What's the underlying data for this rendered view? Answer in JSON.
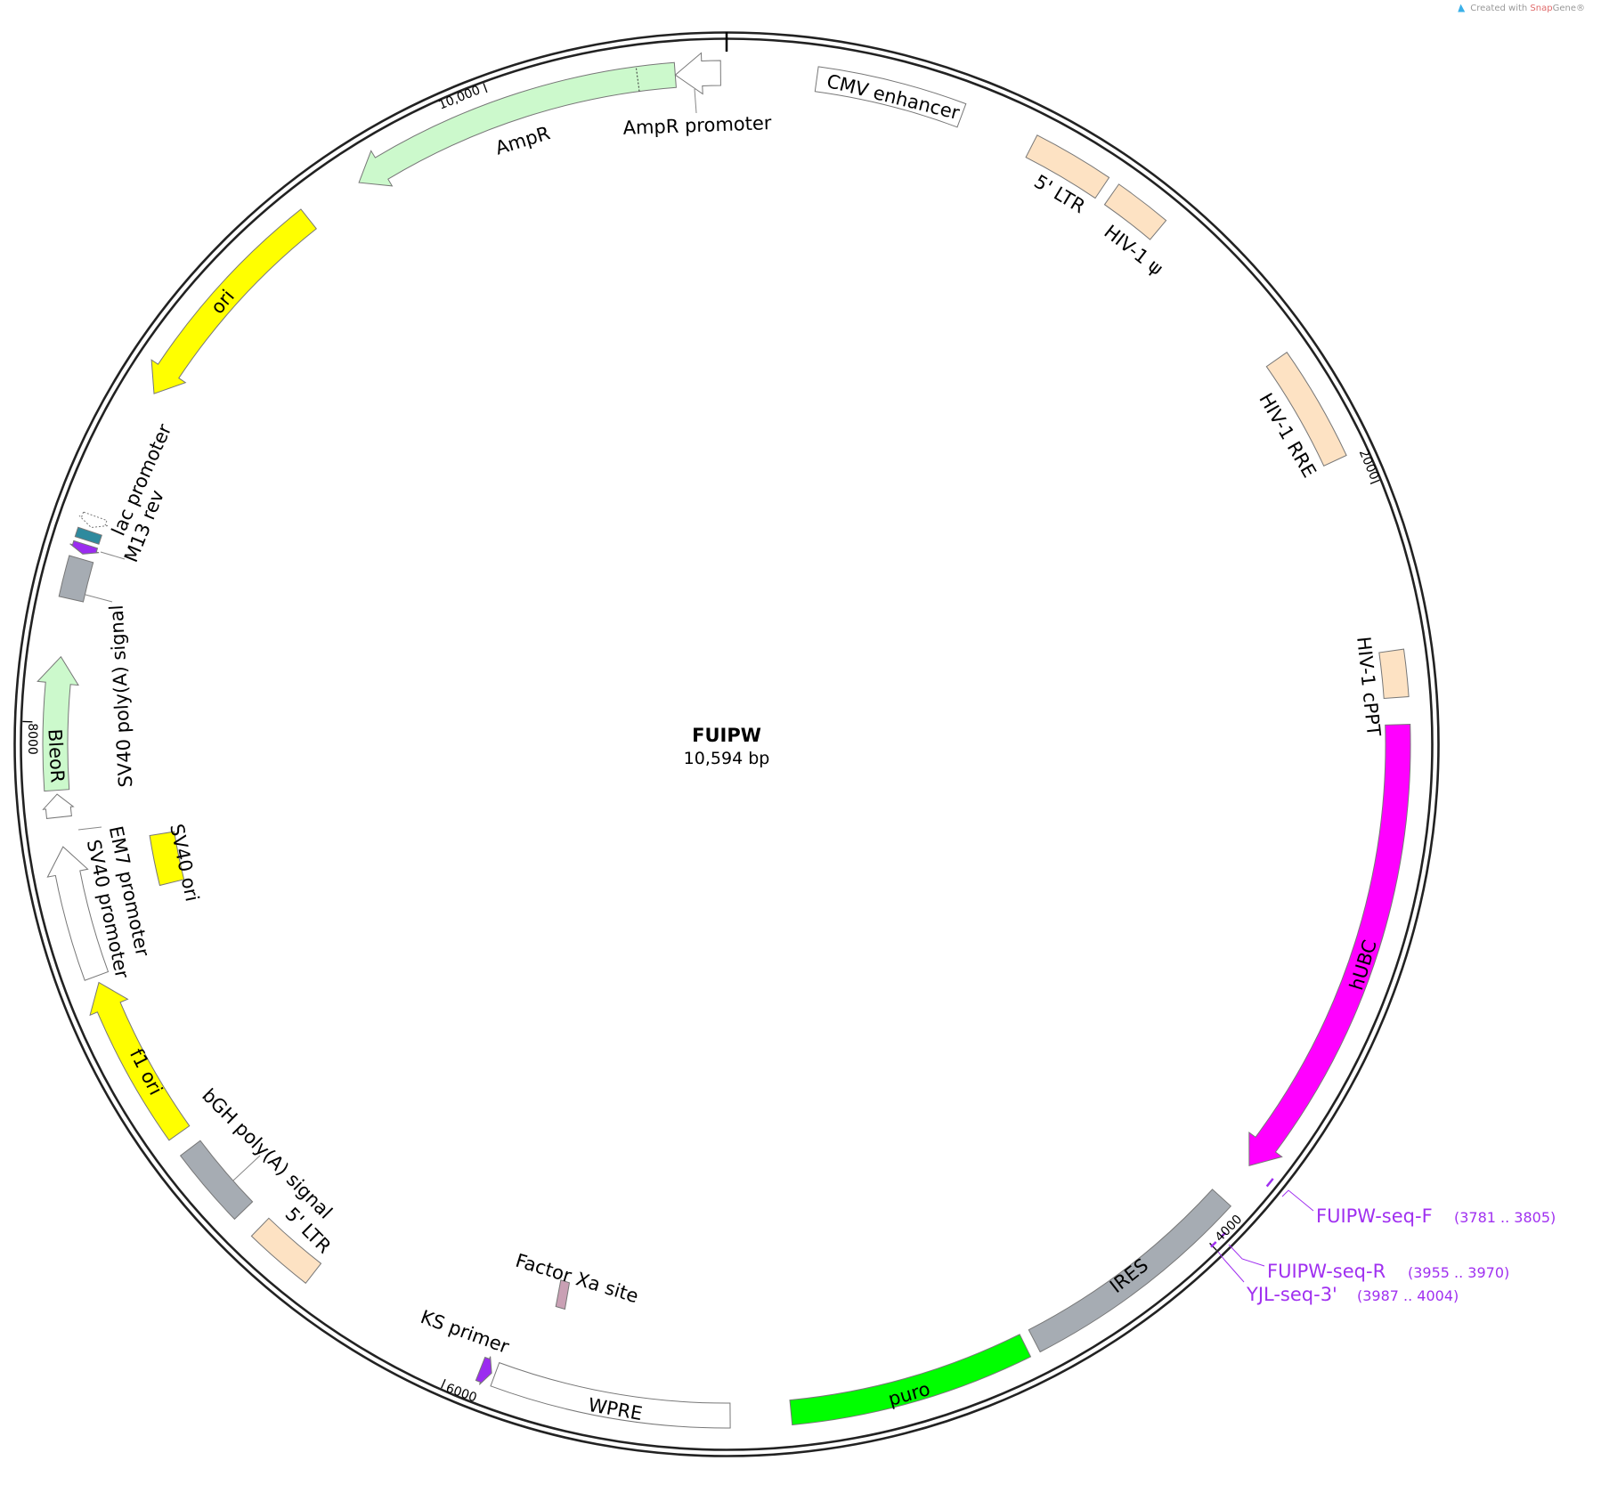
{
  "watermark": {
    "prefix": "Created with ",
    "brand": "Snap",
    "suffix": "Gene®"
  },
  "map": {
    "name": "FUIPW",
    "length_label": "10,594 bp",
    "length_bp": 10594
  },
  "ticks": [
    {
      "bp": 2000,
      "label": "2000"
    },
    {
      "bp": 4000,
      "label": "4000"
    },
    {
      "bp": 6000,
      "label": "6000"
    },
    {
      "bp": 8000,
      "label": "8000"
    },
    {
      "bp": 10000,
      "label": "10,000"
    }
  ],
  "features": [
    {
      "label": "CMV enhancer",
      "start": 227,
      "end": 603,
      "dir": "none",
      "color": "#ffffff",
      "track": "main"
    },
    {
      "label": "5' LTR",
      "start": 795,
      "end": 1001,
      "dir": "none",
      "color": "#fde2c3",
      "track": "main"
    },
    {
      "label": "HIV-1 ψ",
      "start": 1030,
      "end": 1177,
      "dir": "none",
      "color": "#fde2c3",
      "track": "main"
    },
    {
      "label": "HIV-1 RRE",
      "start": 1619,
      "end": 1913,
      "dir": "none",
      "color": "#fde2c3",
      "track": "main"
    },
    {
      "label": "HIV-1 cPPT",
      "start": 2413,
      "end": 2531,
      "dir": "none",
      "color": "#fde2c3",
      "track": "main"
    },
    {
      "label": "hUBC",
      "start": 2599,
      "end": 3793,
      "dir": "fwd",
      "color": "#ff00ff",
      "track": "main"
    },
    {
      "label": "IRES",
      "start": 3899,
      "end": 4494,
      "dir": "none",
      "color": "#a6acb3",
      "track": "main"
    },
    {
      "label": "puro",
      "start": 4520,
      "end": 5135,
      "dir": "none",
      "color": "#00ff00",
      "track": "main"
    },
    {
      "label": "WPRE",
      "start": 5288,
      "end": 5891,
      "dir": "none",
      "color": "#ffffff",
      "track": "main"
    },
    {
      "label": "KS primer",
      "start": 5900,
      "end": 5930,
      "dir": "rev",
      "color": "#9b2cf0",
      "track": "main"
    },
    {
      "label": "Factor Xa site",
      "start": 5770,
      "end": 5800,
      "dir": "none",
      "color": "#c9a0b4",
      "track": "inner-thin"
    },
    {
      "label": "5' LTR",
      "start": 6415,
      "end": 6592,
      "dir": "none",
      "color": "#fde2c3",
      "track": "main"
    },
    {
      "label": "bGH poly(A) signal",
      "start": 6651,
      "end": 6857,
      "dir": "none",
      "color": "#a6acb3",
      "track": "main"
    },
    {
      "label": "f1 ori",
      "start": 6904,
      "end": 7334,
      "dir": "fwd",
      "color": "#ffff00",
      "track": "main"
    },
    {
      "label": "SV40 promoter",
      "start": 7351,
      "end": 7687,
      "dir": "fwd",
      "color": "#ffffff",
      "track": "main"
    },
    {
      "label": "EM7 promoter",
      "start": 7762,
      "end": 7820,
      "dir": "fwd",
      "color": "#ffffff",
      "track": "main"
    },
    {
      "label": "BleoR",
      "start": 7830,
      "end": 8166,
      "dir": "fwd",
      "color": "#ccf9cc",
      "track": "main"
    },
    {
      "label": "SV40 ori",
      "start": 7534,
      "end": 7681,
      "dir": "none",
      "color": "#ffff00",
      "track": "inner"
    },
    {
      "label": "SV40 poly(A) signal",
      "start": 8313,
      "end": 8417,
      "dir": "none",
      "color": "#a6acb3",
      "track": "main"
    },
    {
      "label": "M13 rev",
      "start": 8430,
      "end": 8455,
      "dir": "rev",
      "color": "#9b2cf0",
      "track": "main"
    },
    {
      "label": "",
      "start": 8466,
      "end": 8490,
      "dir": "none",
      "color": "#2e8a9e",
      "track": "main"
    },
    {
      "label": "lac promoter",
      "start": 8500,
      "end": 8530,
      "dir": "rev",
      "color": "#ffffff",
      "track": "main"
    },
    {
      "label": "ori",
      "start": 8872,
      "end": 9461,
      "dir": "rev",
      "color": "#ffff00",
      "track": "main"
    },
    {
      "label": "AmpR",
      "start": 9617,
      "end": 10465,
      "dir": "rev",
      "color": "#ccf9cc",
      "track": "main"
    },
    {
      "label": "AmpR promoter",
      "start": 10465,
      "end": 10579,
      "dir": "rev",
      "color": "#ffffff",
      "track": "main"
    }
  ],
  "primers": [
    {
      "name": "FUIPW-seq-F",
      "range": "(3781 .. 3805)",
      "start": 3781,
      "end": 3805
    },
    {
      "name": "FUIPW-seq-R",
      "range": "(3955 .. 3970)",
      "start": 3955,
      "end": 3970
    },
    {
      "name": "YJL-seq-3'",
      "range": "(3987 .. 4004)",
      "start": 3987,
      "end": 4004
    }
  ],
  "colors": {
    "primer": "#a030f0",
    "backbone": "#222222",
    "outline": "#777777"
  }
}
